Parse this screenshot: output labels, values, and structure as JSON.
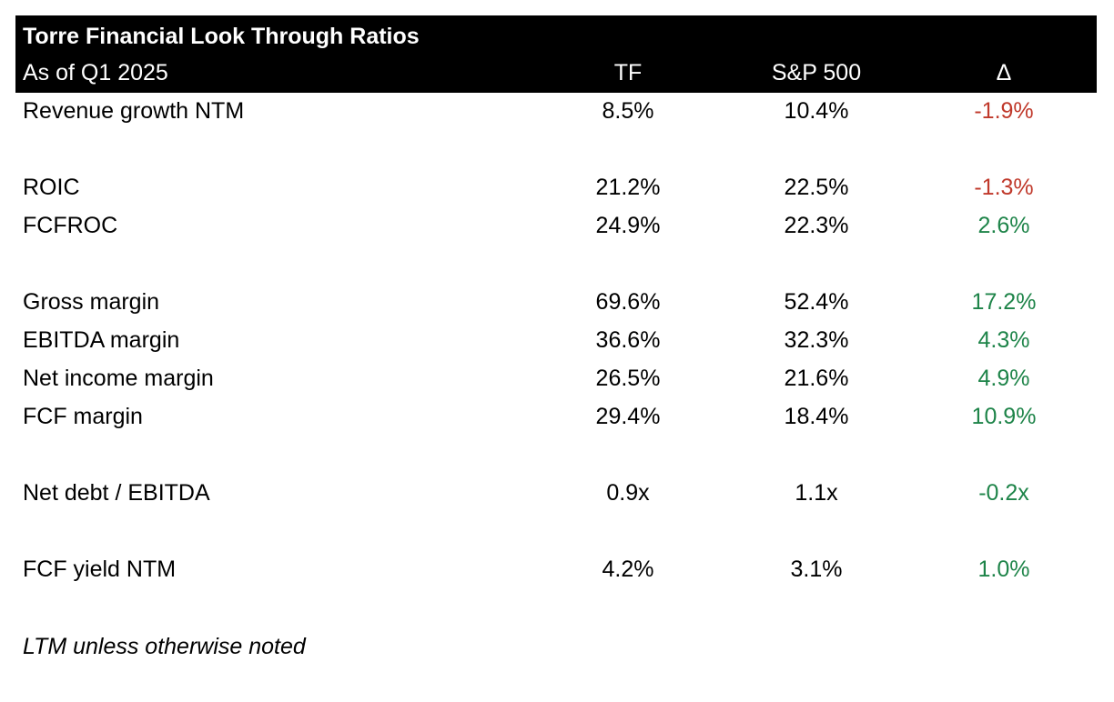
{
  "table": {
    "title": "Torre Financial Look Through Ratios",
    "as_of": "As of Q1 2025",
    "col_tf": "TF",
    "col_sp": "S&P 500",
    "col_delta": "Δ",
    "rows": [
      {
        "label": "Revenue growth NTM",
        "tf": "8.5%",
        "sp": "10.4%",
        "delta": "-1.9%",
        "delta_sign": "negative"
      },
      {
        "label": "ROIC",
        "tf": "21.2%",
        "sp": "22.5%",
        "delta": "-1.3%",
        "delta_sign": "negative"
      },
      {
        "label": "FCFROC",
        "tf": "24.9%",
        "sp": "22.3%",
        "delta": "2.6%",
        "delta_sign": "positive"
      },
      {
        "label": "Gross margin",
        "tf": "69.6%",
        "sp": "52.4%",
        "delta": "17.2%",
        "delta_sign": "positive"
      },
      {
        "label": "EBITDA margin",
        "tf": "36.6%",
        "sp": "32.3%",
        "delta": "4.3%",
        "delta_sign": "positive"
      },
      {
        "label": "Net income margin",
        "tf": "26.5%",
        "sp": "21.6%",
        "delta": "4.9%",
        "delta_sign": "positive"
      },
      {
        "label": "FCF margin",
        "tf": "29.4%",
        "sp": "18.4%",
        "delta": "10.9%",
        "delta_sign": "positive"
      },
      {
        "label": "Net debt / EBITDA",
        "tf": "0.9x",
        "sp": "1.1x",
        "delta": "-0.2x",
        "delta_sign": "positive"
      },
      {
        "label": "FCF yield NTM",
        "tf": "4.2%",
        "sp": "3.1%",
        "delta": "1.0%",
        "delta_sign": "positive"
      }
    ],
    "footnote": "LTM unless otherwise noted"
  },
  "colors": {
    "header_bg": "#000000",
    "header_text": "#ffffff",
    "negative": "#c0392b",
    "positive": "#1e8449"
  }
}
